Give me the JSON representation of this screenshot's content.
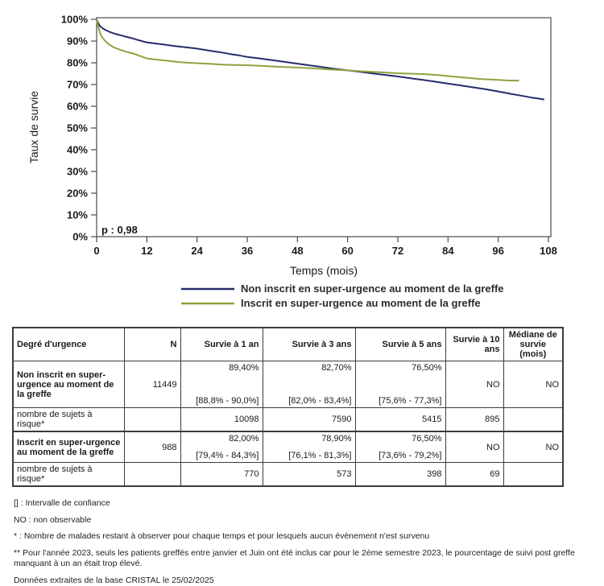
{
  "chart": {
    "y_axis_label": "Taux de survie",
    "x_axis_label": "Temps (mois)",
    "p_value_label": "p : 0,98"
  },
  "chart_data": {
    "type": "line",
    "title": "",
    "xlabel": "Temps (mois)",
    "ylabel": "Taux de survie",
    "xlim": [
      0,
      108
    ],
    "ylim_percent": [
      0,
      100
    ],
    "x_ticks": [
      0,
      12,
      24,
      36,
      48,
      60,
      72,
      84,
      96,
      108
    ],
    "y_ticks_percent": [
      0,
      10,
      20,
      30,
      40,
      50,
      60,
      70,
      80,
      90,
      100
    ],
    "grid": false,
    "legend_position": "bottom",
    "annotation": "p : 0,98",
    "series": [
      {
        "name": "Non inscrit en super-urgence au moment de la greffe",
        "color": "#272c6d",
        "points": [
          [
            0,
            100
          ],
          [
            0.3,
            98.5
          ],
          [
            0.7,
            97.2
          ],
          [
            1,
            96.5
          ],
          [
            1.5,
            95.8
          ],
          [
            2,
            95.2
          ],
          [
            3,
            94.3
          ],
          [
            4,
            93.6
          ],
          [
            5,
            93.0
          ],
          [
            6,
            92.5
          ],
          [
            7,
            92.0
          ],
          [
            8,
            91.5
          ],
          [
            9,
            91.0
          ],
          [
            10,
            90.4
          ],
          [
            11,
            89.9
          ],
          [
            12,
            89.4
          ],
          [
            14,
            88.9
          ],
          [
            16,
            88.4
          ],
          [
            18,
            87.9
          ],
          [
            20,
            87.4
          ],
          [
            22,
            87.0
          ],
          [
            24,
            86.5
          ],
          [
            26,
            85.9
          ],
          [
            28,
            85.3
          ],
          [
            30,
            84.7
          ],
          [
            32,
            84.0
          ],
          [
            34,
            83.4
          ],
          [
            36,
            82.7
          ],
          [
            39,
            82.0
          ],
          [
            42,
            81.2
          ],
          [
            45,
            80.4
          ],
          [
            48,
            79.6
          ],
          [
            51,
            78.8
          ],
          [
            54,
            78.0
          ],
          [
            57,
            77.2
          ],
          [
            60,
            76.5
          ],
          [
            63,
            75.8
          ],
          [
            66,
            75.1
          ],
          [
            69,
            74.4
          ],
          [
            72,
            73.7
          ],
          [
            75,
            72.9
          ],
          [
            78,
            72.1
          ],
          [
            81,
            71.3
          ],
          [
            84,
            70.4
          ],
          [
            87,
            69.6
          ],
          [
            90,
            68.7
          ],
          [
            93,
            67.8
          ],
          [
            96,
            66.8
          ],
          [
            99,
            65.7
          ],
          [
            102,
            64.7
          ],
          [
            104,
            64.0
          ],
          [
            106,
            63.4
          ],
          [
            107,
            63.1
          ]
        ]
      },
      {
        "name": "Inscrit en super-urgence au moment de la greffe",
        "color": "#8ca33e",
        "points": [
          [
            0,
            100
          ],
          [
            0.3,
            97.0
          ],
          [
            0.7,
            94.5
          ],
          [
            1,
            92.8
          ],
          [
            1.5,
            91.3
          ],
          [
            2,
            90.1
          ],
          [
            2.5,
            89.2
          ],
          [
            3,
            88.4
          ],
          [
            4,
            87.2
          ],
          [
            5,
            86.4
          ],
          [
            6,
            85.7
          ],
          [
            7,
            85.1
          ],
          [
            8,
            84.6
          ],
          [
            9,
            84.1
          ],
          [
            10,
            83.4
          ],
          [
            11,
            82.7
          ],
          [
            12,
            82.0
          ],
          [
            14,
            81.5
          ],
          [
            16,
            81.1
          ],
          [
            18,
            80.7
          ],
          [
            20,
            80.3
          ],
          [
            22,
            80.0
          ],
          [
            24,
            79.8
          ],
          [
            27,
            79.5
          ],
          [
            30,
            79.2
          ],
          [
            33,
            79.0
          ],
          [
            36,
            78.9
          ],
          [
            40,
            78.5
          ],
          [
            44,
            78.1
          ],
          [
            48,
            77.8
          ],
          [
            52,
            77.4
          ],
          [
            56,
            76.9
          ],
          [
            60,
            76.5
          ],
          [
            63,
            76.1
          ],
          [
            66,
            75.8
          ],
          [
            69,
            75.5
          ],
          [
            72,
            75.2
          ],
          [
            75,
            75.0
          ],
          [
            78,
            74.8
          ],
          [
            80,
            74.6
          ],
          [
            82,
            74.3
          ],
          [
            84,
            73.9
          ],
          [
            86,
            73.5
          ],
          [
            88,
            73.2
          ],
          [
            90,
            72.8
          ],
          [
            92,
            72.5
          ],
          [
            94,
            72.3
          ],
          [
            96,
            72.1
          ],
          [
            98,
            71.9
          ],
          [
            101,
            71.8
          ]
        ]
      }
    ]
  },
  "table": {
    "headers": {
      "urgency": "Degré d'urgence",
      "n": "N",
      "s1": "Survie à 1 an",
      "s3": "Survie à 3 ans",
      "s5": "Survie à 5 ans",
      "s10": "Survie à 10 ans",
      "median": "Médiane de survie (mois)"
    },
    "rows": {
      "group1": {
        "label": "Non inscrit en super-urgence au moment de la greffe",
        "n": "11449",
        "s1": {
          "value": "89,40%",
          "ci": "[88,8% - 90,0%]"
        },
        "s3": {
          "value": "82,70%",
          "ci": "[82,0% - 83,4%]"
        },
        "s5": {
          "value": "76,50%",
          "ci": "[75,6% - 77,3%]"
        },
        "s10": "NO",
        "median": "NO"
      },
      "risk1": {
        "label": "nombre de sujets à risque*",
        "s1": "10098",
        "s3": "7590",
        "s5": "5415",
        "s10": "895"
      },
      "group2": {
        "label": "Inscrit en super-urgence au moment de la greffe",
        "n": "988",
        "s1": {
          "value": "82,00%",
          "ci": "[79,4% - 84,3%]"
        },
        "s3": {
          "value": "78,90%",
          "ci": "[76,1% - 81,3%]"
        },
        "s5": {
          "value": "76,50%",
          "ci": "[73,6% - 79,2%]"
        },
        "s10": "NO",
        "median": "NO"
      },
      "risk2": {
        "label": "nombre de sujets à risque*",
        "s1": "770",
        "s3": "573",
        "s5": "398",
        "s10": "69"
      }
    }
  },
  "footnotes": [
    "[] : Intervalle de confiance",
    "NO : non observable",
    "* : Nombre de malades restant à observer pour chaque temps et pour lesquels aucun évènement n'est survenu",
    "** Pour l'année 2023, seuls les patients greffés entre janvier et Juin ont été inclus car pour le 2ème semestre 2023, le pourcentage de suivi post greffe manquant à un an était trop élevé.",
    "Données extraites de la base CRISTAL le 25/02/2025"
  ]
}
